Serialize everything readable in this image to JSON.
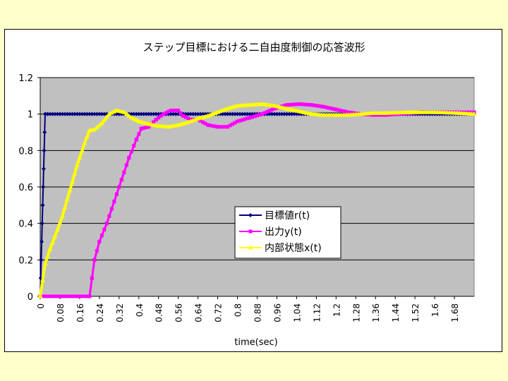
{
  "chart_data": {
    "type": "line",
    "title": "ステップ目標における二自由度制御の応答波形",
    "xlabel": "time(sec)",
    "ylabel": "",
    "ylim": [
      0,
      1.2
    ],
    "xlim": [
      0,
      1.76
    ],
    "x_tick_labels": [
      "0",
      "0.08",
      "0.16",
      "0.24",
      "0.32",
      "0.4",
      "0.48",
      "0.56",
      "0.64",
      "0.72",
      "0.8",
      "0.88",
      "0.96",
      "1.04",
      "1.12",
      "1.2",
      "1.28",
      "1.36",
      "1.44",
      "1.52",
      "1.6",
      "1.68"
    ],
    "y_tick_labels": [
      "0",
      "0.2",
      "0.4",
      "0.6",
      "0.8",
      "1",
      "1.2"
    ],
    "grid": true,
    "plot_background": "#c0c0c0",
    "legend_position": "center",
    "series": [
      {
        "name": "目標値r(t)",
        "color": "#000080",
        "marker": "diamond",
        "x": [
          0,
          0.002,
          0.004,
          0.006,
          0.008,
          0.01,
          0.012,
          0.014,
          0.016,
          0.018,
          0.02,
          0.03,
          1.76
        ],
        "y": [
          0,
          0.1,
          0.2,
          0.3,
          0.4,
          0.5,
          0.6,
          0.7,
          0.8,
          0.9,
          1.0,
          1.0,
          1.0
        ]
      },
      {
        "name": "出力y(t)",
        "color": "#ff00ff",
        "marker": "square",
        "x": [
          0,
          0.2,
          0.21,
          0.22,
          0.24,
          0.27,
          0.3,
          0.33,
          0.36,
          0.39,
          0.41,
          0.44,
          0.47,
          0.5,
          0.53,
          0.56,
          0.58,
          0.61,
          0.64,
          0.68,
          0.72,
          0.76,
          0.8,
          0.85,
          0.9,
          0.95,
          1.0,
          1.05,
          1.1,
          1.15,
          1.2,
          1.25,
          1.3,
          1.35,
          1.4,
          1.45,
          1.5,
          1.55,
          1.6,
          1.65,
          1.7,
          1.76
        ],
        "y": [
          0,
          0,
          0.1,
          0.2,
          0.3,
          0.4,
          0.52,
          0.64,
          0.76,
          0.86,
          0.92,
          0.93,
          0.97,
          1.0,
          1.02,
          1.02,
          0.99,
          0.97,
          0.97,
          0.94,
          0.93,
          0.93,
          0.96,
          0.98,
          1.0,
          1.03,
          1.05,
          1.055,
          1.05,
          1.04,
          1.025,
          1.01,
          1.0,
          0.995,
          0.995,
          1.0,
          1.005,
          1.01,
          1.01,
          1.01,
          1.01,
          1.01
        ]
      },
      {
        "name": "内部状態x(t)",
        "color": "#ffff00",
        "marker": "triangle",
        "x": [
          0,
          0.02,
          0.04,
          0.06,
          0.09,
          0.12,
          0.15,
          0.18,
          0.2,
          0.22,
          0.25,
          0.28,
          0.31,
          0.34,
          0.37,
          0.4,
          0.44,
          0.48,
          0.52,
          0.56,
          0.6,
          0.64,
          0.68,
          0.72,
          0.76,
          0.8,
          0.85,
          0.9,
          0.95,
          1.0,
          1.05,
          1.1,
          1.15,
          1.2,
          1.25,
          1.3,
          1.35,
          1.4,
          1.5,
          1.6,
          1.7,
          1.76
        ],
        "y": [
          0,
          0.18,
          0.26,
          0.33,
          0.44,
          0.58,
          0.72,
          0.84,
          0.91,
          0.915,
          0.95,
          1.0,
          1.02,
          1.01,
          0.98,
          0.96,
          0.945,
          0.935,
          0.93,
          0.94,
          0.955,
          0.975,
          0.99,
          1.01,
          1.03,
          1.045,
          1.05,
          1.055,
          1.045,
          1.03,
          1.015,
          1.0,
          0.995,
          0.995,
          0.995,
          1.0,
          1.005,
          1.005,
          1.01,
          1.01,
          1.005,
          1.0
        ]
      }
    ]
  }
}
